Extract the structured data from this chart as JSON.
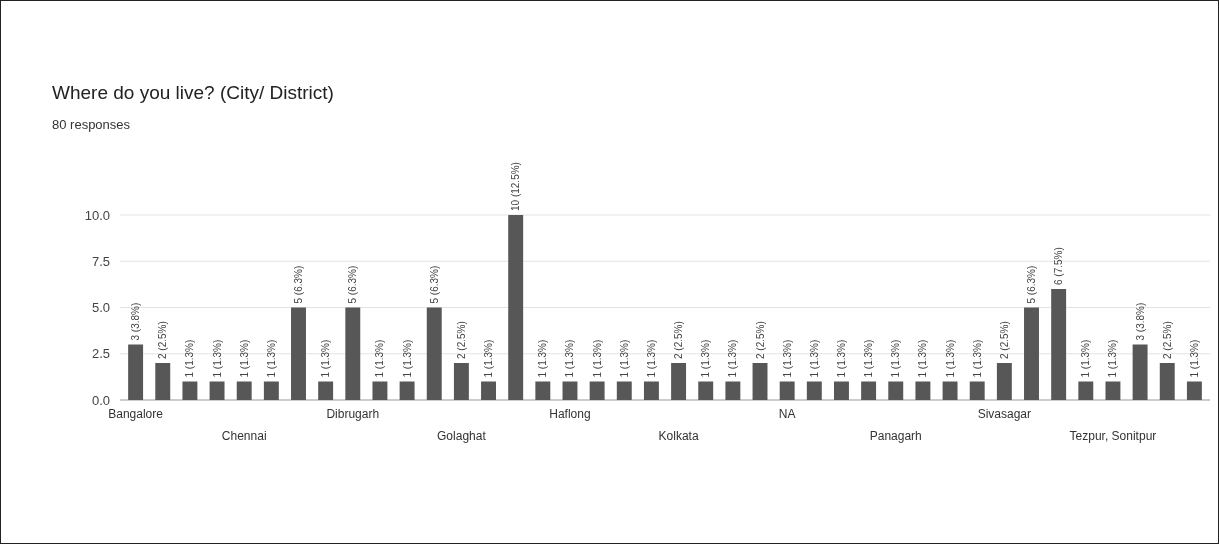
{
  "chart_data": {
    "type": "bar",
    "title": "Where do you live? (City/ District)",
    "subtitle": "80 responses",
    "categories": [
      "Bangalore",
      null,
      null,
      null,
      "Chennai",
      null,
      null,
      null,
      "Dibrugarh",
      null,
      null,
      null,
      "Golaghat",
      null,
      null,
      null,
      "Haflong",
      null,
      null,
      null,
      "Kolkata",
      null,
      null,
      null,
      "NA",
      null,
      null,
      null,
      "Panagarh",
      null,
      null,
      null,
      "Sivasagar",
      null,
      null,
      null,
      "Tezpur, Sonitpur",
      null,
      null,
      null
    ],
    "values": [
      3,
      2,
      1,
      1,
      1,
      1,
      5,
      1,
      5,
      1,
      1,
      5,
      2,
      1,
      10,
      1,
      1,
      1,
      1,
      1,
      2,
      1,
      1,
      2,
      1,
      1,
      1,
      1,
      1,
      1,
      1,
      1,
      2,
      5,
      6,
      1,
      1,
      3,
      2,
      1
    ],
    "value_labels": [
      "3 (3.8%)",
      "2 (2.5%)",
      "1 (1.3%)",
      "1 (1.3%)",
      "1 (1.3%)",
      "1 (1.3%)",
      "5 (6.3%)",
      "1 (1.3%)",
      "5 (6.3%)",
      "1 (1.3%)",
      "1 (1.3%)",
      "5 (6.3%)",
      "2 (2.5%)",
      "1 (1.3%)",
      "10 (12.5%)",
      "1 (1.3%)",
      "1 (1.3%)",
      "1 (1.3%)",
      "1 (1.3%)",
      "1 (1.3%)",
      "2 (2.5%)",
      "1 (1.3%)",
      "1 (1.3%)",
      "2 (2.5%)",
      "1 (1.3%)",
      "1 (1.3%)",
      "1 (1.3%)",
      "1 (1.3%)",
      "1 (1.3%)",
      "1 (1.3%)",
      "1 (1.3%)",
      "1 (1.3%)",
      "2 (2.5%)",
      "5 (6.3%)",
      "6 (7.5%)",
      "1 (1.3%)",
      "1 (1.3%)",
      "3 (3.8%)",
      "2 (2.5%)",
      "1 (1.3%)"
    ],
    "color": "#575757",
    "ylim": [
      0,
      10
    ],
    "yticks": [
      {
        "value": 0,
        "label": "0.0"
      },
      {
        "value": 2.5,
        "label": "2.5"
      },
      {
        "value": 5,
        "label": "5.0"
      },
      {
        "value": 7.5,
        "label": "7.5"
      },
      {
        "value": 10,
        "label": "10.0"
      }
    ],
    "grid": "y"
  }
}
